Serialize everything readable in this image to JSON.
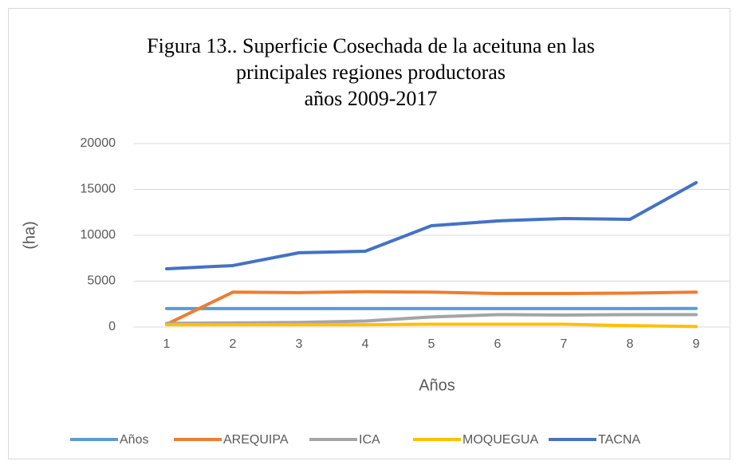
{
  "chart_data": {
    "type": "line",
    "title": [
      "Figura 13.. Superficie Cosechada de la aceituna en las",
      "principales regiones productoras",
      "años 2009-2017"
    ],
    "x_label": "Años",
    "y_label": "(ha)",
    "categories": [
      "1",
      "2",
      "3",
      "4",
      "5",
      "6",
      "7",
      "8",
      "9"
    ],
    "series": [
      {
        "name": "Años",
        "color": "#5b9bd5",
        "values": [
          2009,
          2010,
          2011,
          2012,
          2013,
          2014,
          2015,
          2016,
          2017
        ]
      },
      {
        "name": "AREQUIPA",
        "color": "#ed7d31",
        "values": [
          300,
          3800,
          3750,
          3850,
          3800,
          3650,
          3650,
          3700,
          3800
        ]
      },
      {
        "name": "ICA",
        "color": "#a5a5a5",
        "values": [
          400,
          450,
          500,
          650,
          1100,
          1350,
          1300,
          1350,
          1350
        ]
      },
      {
        "name": "MOQUEGUA",
        "color": "#ffc000",
        "values": [
          250,
          250,
          250,
          250,
          300,
          300,
          300,
          150,
          50
        ]
      },
      {
        "name": "TACNA",
        "color": "#4472c4",
        "values": [
          6350,
          6700,
          8100,
          8260,
          11040,
          11570,
          11830,
          11740,
          15740
        ]
      }
    ],
    "ylim": [
      0,
      20000
    ],
    "yticks": [
      0,
      5000,
      10000,
      15000,
      20000
    ],
    "grid": true,
    "legend": "bottom"
  }
}
